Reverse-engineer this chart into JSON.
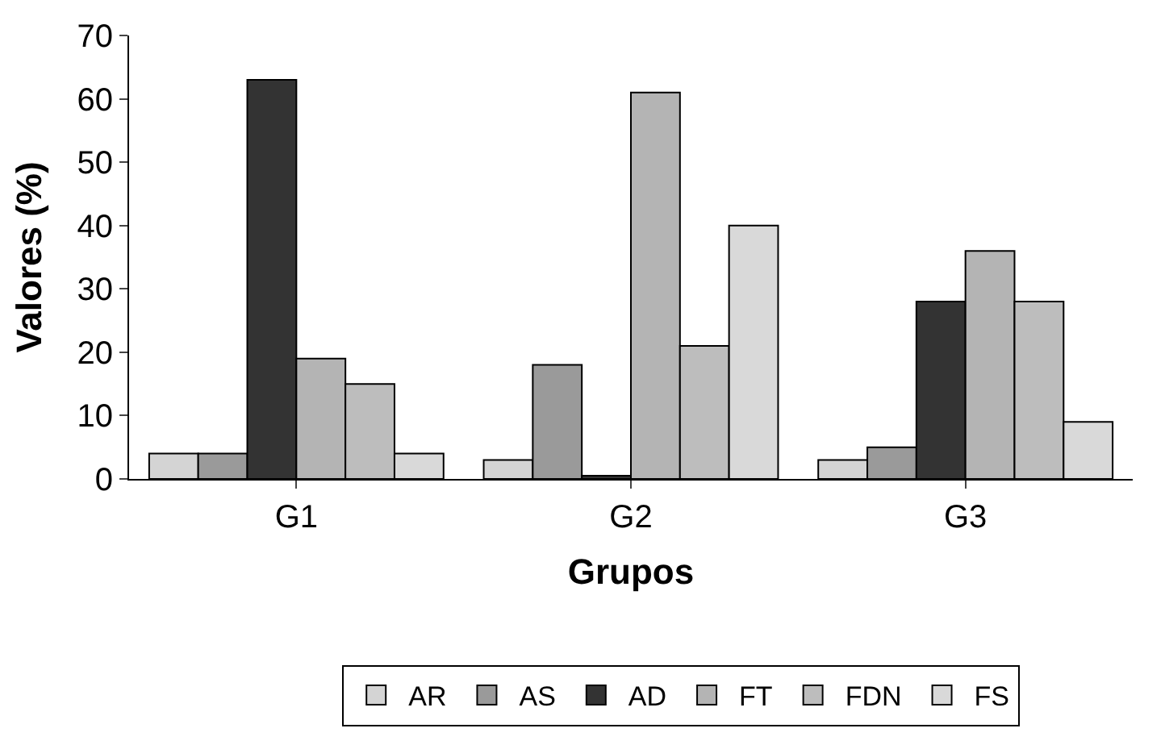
{
  "chart_data": {
    "type": "bar",
    "xlabel": "Grupos",
    "ylabel": "Valores (%)",
    "categories": [
      "G1",
      "G2",
      "G3"
    ],
    "series": [
      {
        "name": "AR",
        "color": "#d4d4d4",
        "values": [
          4,
          3,
          3
        ]
      },
      {
        "name": "AS",
        "color": "#9a9a9a",
        "values": [
          4,
          18,
          5
        ]
      },
      {
        "name": "AD",
        "color": "#333333",
        "values": [
          63,
          0.5,
          28
        ]
      },
      {
        "name": "FT",
        "color": "#b4b4b4",
        "values": [
          19,
          61,
          36
        ]
      },
      {
        "name": "FDN",
        "color": "#bdbdbd",
        "values": [
          15,
          21,
          28
        ]
      },
      {
        "name": "FS",
        "color": "#d9d9d9",
        "values": [
          4,
          40,
          9
        ]
      }
    ],
    "ylim": [
      0,
      70
    ],
    "yticks": [
      0,
      10,
      20,
      30,
      40,
      50,
      60,
      70
    ],
    "grid": false,
    "legend": "bottom"
  }
}
